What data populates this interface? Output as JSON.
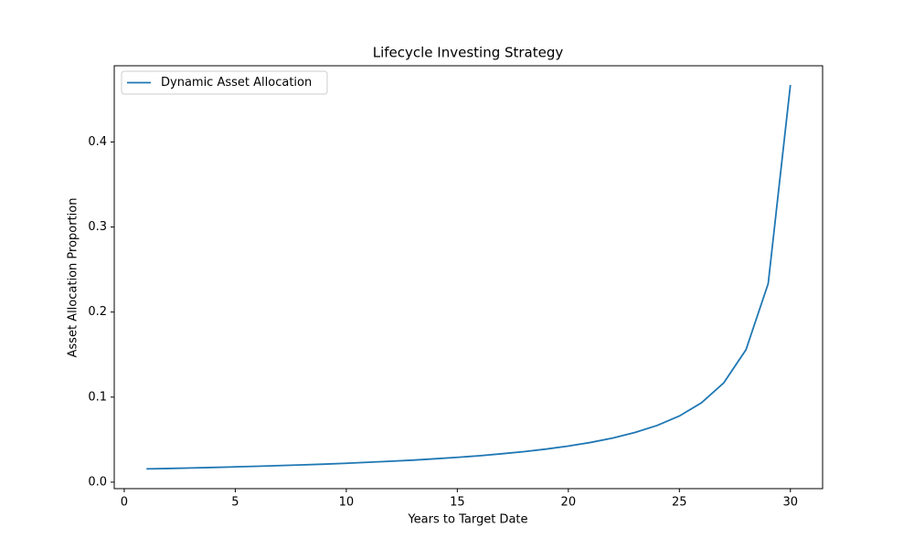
{
  "chart_data": {
    "type": "line",
    "title": "Lifecycle Investing Strategy",
    "x_label": "Years to Target Date",
    "y_label": "Asset Allocation Proportion",
    "x": [
      1,
      2,
      3,
      4,
      5,
      6,
      7,
      8,
      9,
      10,
      11,
      12,
      13,
      14,
      15,
      16,
      17,
      18,
      19,
      20,
      21,
      22,
      23,
      24,
      25,
      26,
      27,
      28,
      29,
      30
    ],
    "series": [
      {
        "name": "Dynamic Asset Allocation",
        "color": "#1f77b4",
        "values": [
          0.0156,
          0.0161,
          0.0167,
          0.0173,
          0.018,
          0.0187,
          0.0195,
          0.0203,
          0.0212,
          0.0222,
          0.0234,
          0.0246,
          0.0259,
          0.0275,
          0.0292,
          0.0311,
          0.0334,
          0.0359,
          0.0389,
          0.0425,
          0.0467,
          0.0519,
          0.0584,
          0.0667,
          0.0778,
          0.0934,
          0.1168,
          0.1557,
          0.2335,
          0.467
        ]
      }
    ],
    "xlim": [
      -0.45,
      31.45
    ],
    "xticks": [
      0,
      5,
      10,
      15,
      20,
      25,
      30
    ],
    "ylim": [
      -0.0076,
      0.4896
    ],
    "yticks": [
      {
        "value": 0,
        "label": "0.0"
      },
      0.1,
      0.2,
      0.3,
      0.4
    ],
    "grid": false,
    "legend": "upper-left"
  }
}
